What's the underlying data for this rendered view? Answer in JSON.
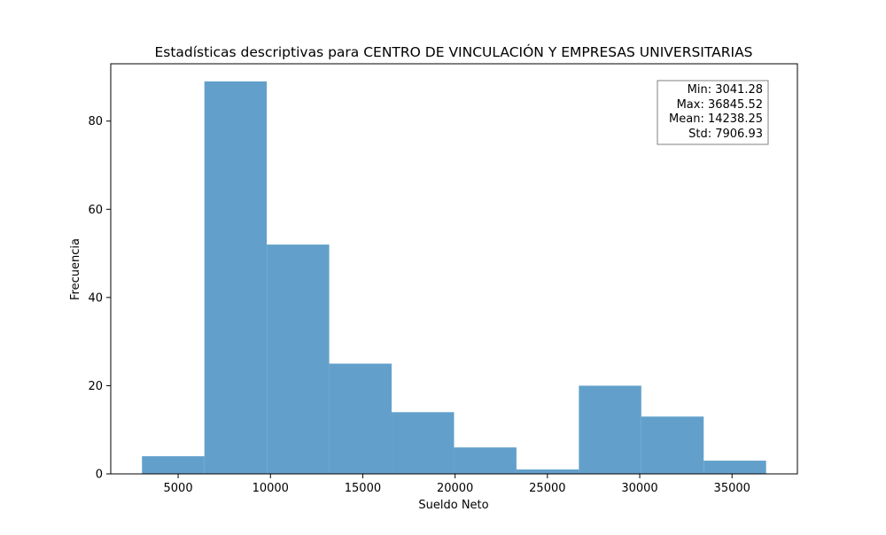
{
  "chart_data": {
    "type": "histogram",
    "title": "Estadísticas descriptivas para CENTRO DE VINCULACIÓN Y EMPRESAS UNIVERSITARIAS",
    "xlabel": "Sueldo Neto",
    "ylabel": "Frecuencia",
    "xlim": [
      1350,
      38540
    ],
    "ylim": [
      0,
      93
    ],
    "xticks": [
      5000,
      10000,
      15000,
      20000,
      25000,
      30000,
      35000
    ],
    "yticks": [
      0,
      20,
      40,
      60,
      80
    ],
    "bin_edges": [
      3041.28,
      6421.7,
      9802.13,
      13182.55,
      16562.98,
      19943.4,
      23323.82,
      26704.25,
      30084.67,
      33465.1,
      36845.52
    ],
    "counts": [
      4,
      89,
      52,
      25,
      14,
      6,
      1,
      20,
      13,
      3
    ],
    "bar_color": "#62a0cb",
    "grid": false,
    "stats_box": {
      "lines": [
        "Min: 3041.28",
        "Max: 36845.52",
        "Mean: 14238.25",
        "Std: 7906.93"
      ],
      "placement": "top-right"
    }
  }
}
